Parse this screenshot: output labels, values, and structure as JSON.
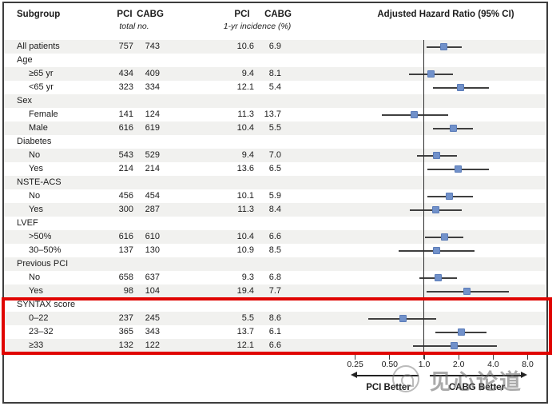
{
  "header": {
    "subgroup": "Subgroup",
    "pci_total": "PCI",
    "cabg_total": "CABG",
    "total_no": "total no.",
    "pci_inc": "PCI",
    "cabg_inc": "CABG",
    "incidence": "1-yr incidence (%)",
    "hr_title": "Adjusted Hazard Ratio (95% CI)"
  },
  "axis": {
    "tick_labels": [
      "0.25",
      "0.50",
      "1.0",
      "2.0",
      "4.0",
      "8.0"
    ],
    "tick_values": [
      0.25,
      0.5,
      1.0,
      2.0,
      4.0,
      8.0
    ],
    "left_label": "PCI Better",
    "right_label": "CABG Better"
  },
  "watermark": {
    "text": "见心论道"
  },
  "colors": {
    "marker": "#7191ca",
    "marker_border": "#5b7cb8",
    "stripe": "#f1f1ef",
    "highlight_box": "#e00400",
    "ci_line": "#3f3f3f"
  },
  "chart_data": {
    "type": "forest",
    "title": "Adjusted Hazard Ratio (95% CI)",
    "x_scale": "log",
    "x_ticks": [
      0.25,
      0.5,
      1.0,
      2.0,
      4.0,
      8.0
    ],
    "reference_line": 1.0,
    "better_left": "PCI Better",
    "better_right": "CABG Better",
    "highlighted_group": "SYNTAX score",
    "rows": [
      {
        "label": "All patients",
        "indent": 0,
        "pci_n": "757",
        "cabg_n": "743",
        "pci_pct": "10.6",
        "cabg_pct": "6.9",
        "hr": 1.5,
        "lo": 1.05,
        "hi": 2.15
      },
      {
        "label": "Age",
        "indent": 0
      },
      {
        "label": "≥65 yr",
        "indent": 1,
        "pci_n": "434",
        "cabg_n": "409",
        "pci_pct": "9.4",
        "cabg_pct": "8.1",
        "hr": 1.16,
        "lo": 0.74,
        "hi": 1.81
      },
      {
        "label": "<65 yr",
        "indent": 1,
        "pci_n": "323",
        "cabg_n": "334",
        "pci_pct": "12.1",
        "cabg_pct": "5.4",
        "hr": 2.09,
        "lo": 1.21,
        "hi": 3.67
      },
      {
        "label": "Sex",
        "indent": 0
      },
      {
        "label": "Female",
        "indent": 1,
        "pci_n": "141",
        "cabg_n": "124",
        "pci_pct": "11.3",
        "cabg_pct": "13.7",
        "hr": 0.82,
        "lo": 0.43,
        "hi": 1.64
      },
      {
        "label": "Male",
        "indent": 1,
        "pci_n": "616",
        "cabg_n": "619",
        "pci_pct": "10.4",
        "cabg_pct": "5.5",
        "hr": 1.81,
        "lo": 1.21,
        "hi": 2.7
      },
      {
        "label": "Diabetes",
        "indent": 0
      },
      {
        "label": "No",
        "indent": 1,
        "pci_n": "543",
        "cabg_n": "529",
        "pci_pct": "9.4",
        "cabg_pct": "7.0",
        "hr": 1.29,
        "lo": 0.87,
        "hi": 1.96
      },
      {
        "label": "Yes",
        "indent": 1,
        "pci_n": "214",
        "cabg_n": "214",
        "pci_pct": "13.6",
        "cabg_pct": "6.5",
        "hr": 1.99,
        "lo": 1.08,
        "hi": 3.72
      },
      {
        "label": "NSTE-ACS",
        "indent": 0
      },
      {
        "label": "No",
        "indent": 1,
        "pci_n": "456",
        "cabg_n": "454",
        "pci_pct": "10.1",
        "cabg_pct": "5.9",
        "hr": 1.67,
        "lo": 1.07,
        "hi": 2.7
      },
      {
        "label": "Yes",
        "indent": 1,
        "pci_n": "300",
        "cabg_n": "287",
        "pci_pct": "11.3",
        "cabg_pct": "8.4",
        "hr": 1.27,
        "lo": 0.75,
        "hi": 2.13
      },
      {
        "label": "LVEF",
        "indent": 0
      },
      {
        "label": ">50%",
        "indent": 1,
        "pci_n": "616",
        "cabg_n": "610",
        "pci_pct": "10.4",
        "cabg_pct": "6.6",
        "hr": 1.52,
        "lo": 1.03,
        "hi": 2.23
      },
      {
        "label": "30–50%",
        "indent": 1,
        "pci_n": "137",
        "cabg_n": "130",
        "pci_pct": "10.9",
        "cabg_pct": "8.5",
        "hr": 1.29,
        "lo": 0.6,
        "hi": 2.79
      },
      {
        "label": "Previous PCI",
        "indent": 0
      },
      {
        "label": "No",
        "indent": 1,
        "pci_n": "658",
        "cabg_n": "637",
        "pci_pct": "9.3",
        "cabg_pct": "6.8",
        "hr": 1.33,
        "lo": 0.92,
        "hi": 1.96
      },
      {
        "label": "Yes",
        "indent": 1,
        "pci_n": "98",
        "cabg_n": "104",
        "pci_pct": "19.4",
        "cabg_pct": "7.7",
        "hr": 2.38,
        "lo": 1.05,
        "hi": 5.48
      },
      {
        "label": "SYNTAX score",
        "indent": 0
      },
      {
        "label": "0–22",
        "indent": 1,
        "pci_n": "237",
        "cabg_n": "245",
        "pci_pct": "5.5",
        "cabg_pct": "8.6",
        "hr": 0.66,
        "lo": 0.33,
        "hi": 1.29
      },
      {
        "label": "23–32",
        "indent": 1,
        "pci_n": "365",
        "cabg_n": "343",
        "pci_pct": "13.7",
        "cabg_pct": "6.1",
        "hr": 2.13,
        "lo": 1.27,
        "hi": 3.55
      },
      {
        "label": "≥33",
        "indent": 1,
        "pci_n": "132",
        "cabg_n": "122",
        "pci_pct": "12.1",
        "cabg_pct": "6.6",
        "hr": 1.84,
        "lo": 0.81,
        "hi": 4.37
      }
    ]
  }
}
